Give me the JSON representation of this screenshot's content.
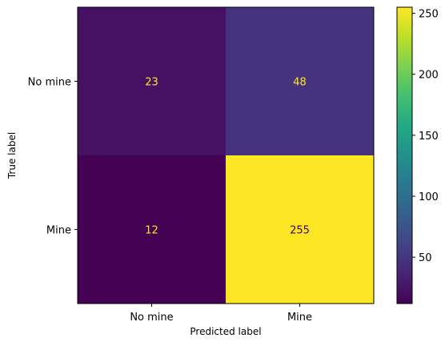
{
  "chart_data": {
    "type": "heatmap",
    "title": "",
    "xlabel": "Predicted label",
    "ylabel": "True label",
    "x_categories": [
      "No mine",
      "Mine"
    ],
    "y_categories": [
      "No mine",
      "Mine"
    ],
    "matrix": [
      [
        23,
        48
      ],
      [
        12,
        255
      ]
    ],
    "colormap": "viridis",
    "colorbar": {
      "range": [
        12,
        255
      ],
      "ticks": [
        50,
        100,
        150,
        200,
        250
      ]
    },
    "text_colors": {
      "on_dark": "#fde725",
      "on_light": "#440154"
    }
  }
}
